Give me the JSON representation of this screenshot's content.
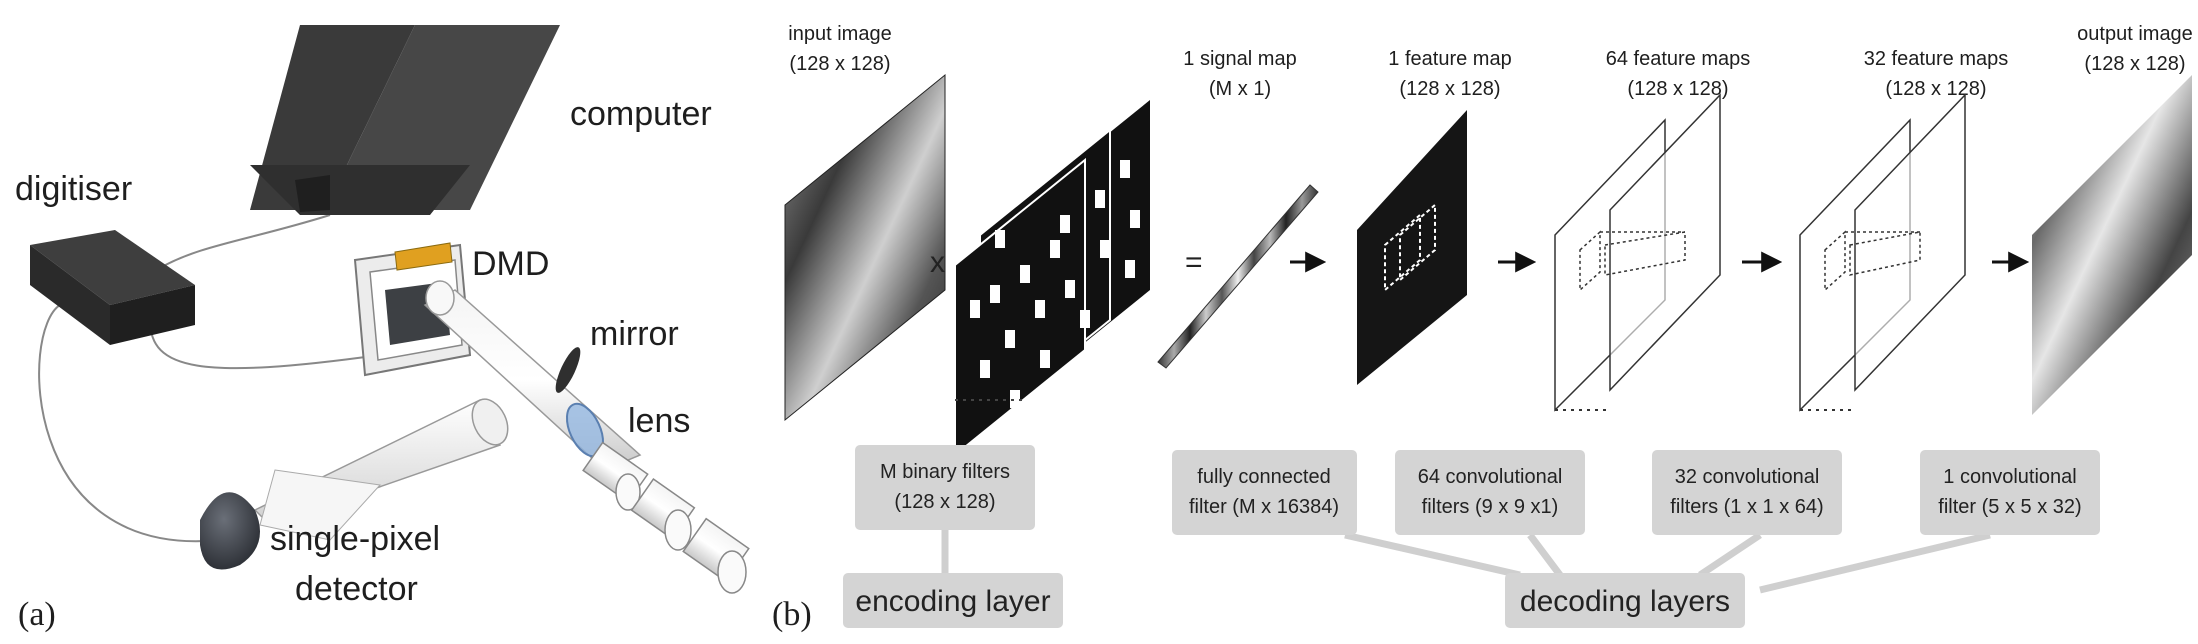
{
  "panel_a": {
    "label": "(a)",
    "computer": "computer",
    "digitiser": "digitiser",
    "dmd": "DMD",
    "mirror": "mirror",
    "lens": "lens",
    "detector_line1": "single-pixel",
    "detector_line2": "detector"
  },
  "panel_b": {
    "label": "(b)",
    "input": {
      "title": "input image",
      "size": "(128 x 128)"
    },
    "signal_map": {
      "title": "1 signal map",
      "size": "(M x 1)"
    },
    "feature_1": {
      "title": "1 feature map",
      "size": "(128 x 128)"
    },
    "feature_64": {
      "title": "64 feature maps",
      "size": "(128 x 128)"
    },
    "feature_32": {
      "title": "32 feature maps",
      "size": "(128 x 128)"
    },
    "output": {
      "title": "output image",
      "size": "(128 x 128)"
    },
    "times_symbol": "x",
    "equals_symbol": "=",
    "filters": [
      {
        "line1": "M binary filters",
        "line2": "(128 x 128)"
      },
      {
        "line1": "fully connected",
        "line2": "filter (M x 16384)"
      },
      {
        "line1": "64 convolutional",
        "line2": "filters (9 x 9 x1)"
      },
      {
        "line1": "32 convolutional",
        "line2": "filters (1 x 1 x 64)"
      },
      {
        "line1": "1 convolutional",
        "line2": "filter (5 x 5 x 32)"
      }
    ],
    "encoding_layer": "encoding layer",
    "decoding_layers": "decoding layers"
  },
  "colors": {
    "laptop": "#3c3c3c",
    "digitiser": "#333333",
    "dmd_chip": "#e0a020",
    "lens_blue": "#8fb4e0",
    "label_box": "#d4d4d4",
    "connector": "#cfcfcf"
  }
}
